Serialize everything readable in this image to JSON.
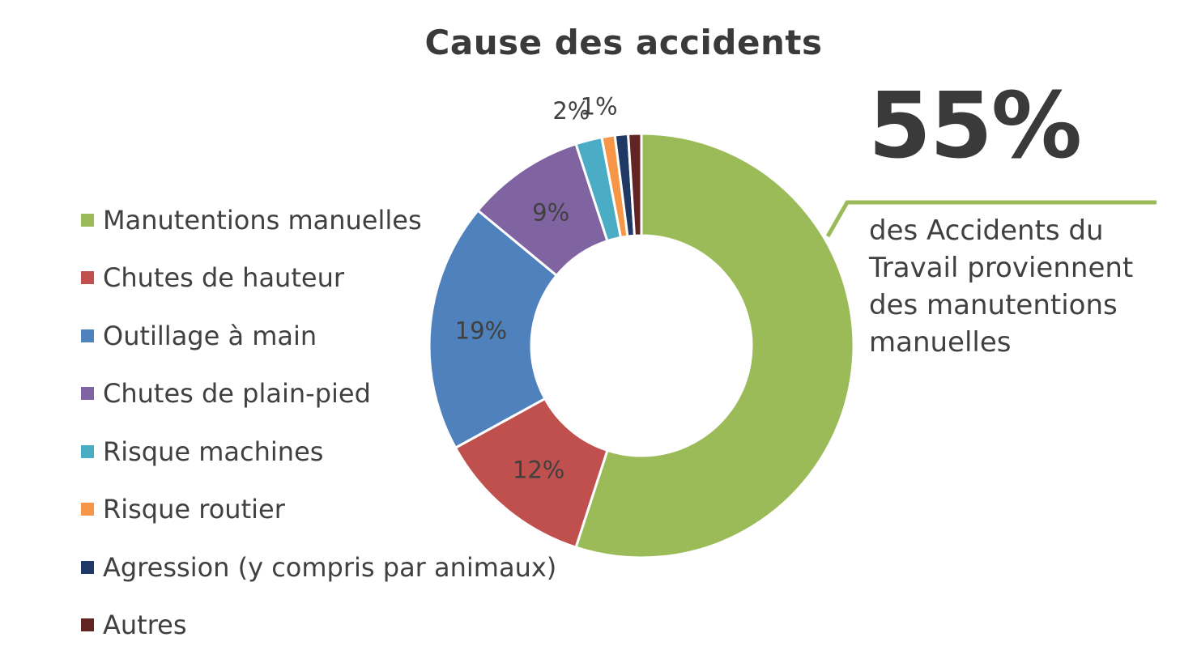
{
  "chart_data": {
    "type": "pie",
    "donut": true,
    "title": "Cause des accidents",
    "legend_position": "left",
    "categories": [
      "Manutentions manuelles",
      "Chutes de hauteur",
      "Outillage à main",
      "Chutes de plain-pied",
      "Risque machines",
      "Risque routier",
      "Agression (y compris par animaux)",
      "Autres"
    ],
    "values": [
      55,
      12,
      19,
      9,
      2,
      1,
      1,
      1
    ],
    "data_labels": [
      "",
      "12%",
      "19%",
      "9%",
      "2%",
      "1%",
      "",
      ""
    ],
    "colors": [
      "#9bbb59",
      "#c0504d",
      "#4f81bd",
      "#8064a2",
      "#4bacc6",
      "#f79646",
      "#1f3864",
      "#632523"
    ]
  },
  "callout": {
    "value": "55%",
    "text": "des Accidents du Travail proviennent des manutentions manuelles",
    "line_color": "#9bbb59"
  }
}
